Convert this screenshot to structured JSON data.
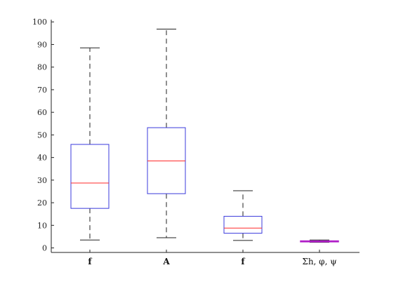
{
  "chart_data": {
    "type": "box",
    "categories": [
      "f",
      "A",
      "f",
      "Σh, φ, ψ"
    ],
    "category_bold": [
      true,
      true,
      true,
      false
    ],
    "boxes": [
      {
        "whisker_low": 3.5,
        "q1": 17.5,
        "median": 28.7,
        "q3": 45.8,
        "whisker_high": 88.5
      },
      {
        "whisker_low": 4.5,
        "q1": 24.0,
        "median": 38.5,
        "q3": 53.2,
        "whisker_high": 96.8
      },
      {
        "whisker_low": 3.3,
        "q1": 6.5,
        "median": 8.8,
        "q3": 14.0,
        "whisker_high": 25.3
      },
      {
        "whisker_low": 2.5,
        "q1": 2.7,
        "median": 2.9,
        "q3": 3.1,
        "whisker_high": 3.5
      }
    ],
    "ylim": [
      -2,
      101
    ],
    "yticks": [
      0,
      10,
      20,
      30,
      40,
      50,
      60,
      70,
      80,
      90,
      100
    ],
    "colors": {
      "box": "#3b3bdc",
      "median": "#ff2a2a",
      "whisker": "#222222",
      "last_box": "#b01ec8"
    },
    "title": "",
    "xlabel": "",
    "ylabel": ""
  }
}
